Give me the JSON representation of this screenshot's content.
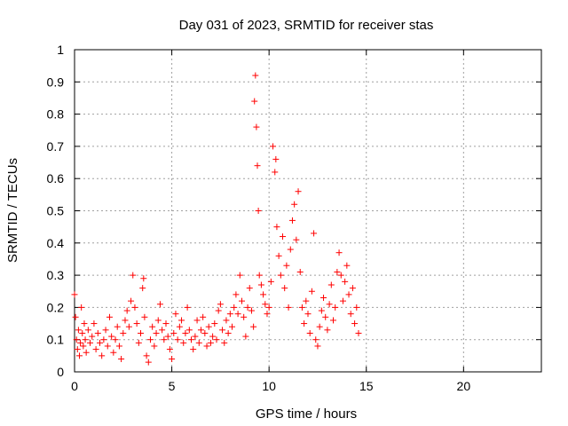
{
  "chart_data": {
    "type": "scatter",
    "title": "Day 031 of 2023, SRMTID for receiver stas",
    "xlabel": "GPS time / hours",
    "ylabel": "SRMTID / TECUs",
    "xlim": [
      0,
      24
    ],
    "ylim": [
      0,
      1
    ],
    "xticks": [
      0,
      5,
      10,
      15,
      20
    ],
    "yticks": [
      0,
      0.1,
      0.2,
      0.3,
      0.4,
      0.5,
      0.6,
      0.7,
      0.8,
      0.9,
      1
    ],
    "ytick_labels": [
      "0",
      "0.1",
      "0.2",
      "0.3",
      "0.4",
      "0.5",
      "0.6",
      "0.7",
      "0.8",
      "0.9",
      "1"
    ],
    "grid": true,
    "marker": "plus",
    "color": "#ff0000",
    "series": [
      {
        "name": "stas",
        "points": [
          [
            0.0,
            0.24
          ],
          [
            0.05,
            0.17
          ],
          [
            0.1,
            0.1
          ],
          [
            0.15,
            0.07
          ],
          [
            0.2,
            0.13
          ],
          [
            0.25,
            0.05
          ],
          [
            0.3,
            0.09
          ],
          [
            0.35,
            0.2
          ],
          [
            0.4,
            0.12
          ],
          [
            0.45,
            0.08
          ],
          [
            0.5,
            0.15
          ],
          [
            0.55,
            0.1
          ],
          [
            0.6,
            0.06
          ],
          [
            0.7,
            0.13
          ],
          [
            0.8,
            0.09
          ],
          [
            0.9,
            0.11
          ],
          [
            1.0,
            0.15
          ],
          [
            1.1,
            0.07
          ],
          [
            1.2,
            0.12
          ],
          [
            1.3,
            0.09
          ],
          [
            1.4,
            0.05
          ],
          [
            1.5,
            0.1
          ],
          [
            1.6,
            0.13
          ],
          [
            1.7,
            0.08
          ],
          [
            1.8,
            0.17
          ],
          [
            1.9,
            0.11
          ],
          [
            2.0,
            0.06
          ],
          [
            2.1,
            0.1
          ],
          [
            2.2,
            0.14
          ],
          [
            2.3,
            0.08
          ],
          [
            2.4,
            0.04
          ],
          [
            2.5,
            0.12
          ],
          [
            2.6,
            0.16
          ],
          [
            2.7,
            0.19
          ],
          [
            2.8,
            0.14
          ],
          [
            2.9,
            0.22
          ],
          [
            3.0,
            0.3
          ],
          [
            3.1,
            0.2
          ],
          [
            3.2,
            0.15
          ],
          [
            3.3,
            0.09
          ],
          [
            3.4,
            0.12
          ],
          [
            3.5,
            0.26
          ],
          [
            3.55,
            0.29
          ],
          [
            3.6,
            0.17
          ],
          [
            3.7,
            0.05
          ],
          [
            3.8,
            0.03
          ],
          [
            3.9,
            0.1
          ],
          [
            4.0,
            0.14
          ],
          [
            4.1,
            0.08
          ],
          [
            4.2,
            0.12
          ],
          [
            4.3,
            0.16
          ],
          [
            4.4,
            0.21
          ],
          [
            4.5,
            0.13
          ],
          [
            4.6,
            0.1
          ],
          [
            4.7,
            0.15
          ],
          [
            4.8,
            0.11
          ],
          [
            4.9,
            0.07
          ],
          [
            5.0,
            0.04
          ],
          [
            5.1,
            0.12
          ],
          [
            5.2,
            0.18
          ],
          [
            5.3,
            0.1
          ],
          [
            5.4,
            0.14
          ],
          [
            5.5,
            0.16
          ],
          [
            5.6,
            0.09
          ],
          [
            5.7,
            0.12
          ],
          [
            5.8,
            0.2
          ],
          [
            5.9,
            0.13
          ],
          [
            6.0,
            0.1
          ],
          [
            6.1,
            0.07
          ],
          [
            6.2,
            0.11
          ],
          [
            6.3,
            0.16
          ],
          [
            6.4,
            0.09
          ],
          [
            6.5,
            0.13
          ],
          [
            6.6,
            0.17
          ],
          [
            6.7,
            0.12
          ],
          [
            6.8,
            0.08
          ],
          [
            6.9,
            0.14
          ],
          [
            7.0,
            0.09
          ],
          [
            7.1,
            0.11
          ],
          [
            7.2,
            0.15
          ],
          [
            7.3,
            0.1
          ],
          [
            7.4,
            0.19
          ],
          [
            7.5,
            0.21
          ],
          [
            7.6,
            0.13
          ],
          [
            7.7,
            0.09
          ],
          [
            7.8,
            0.16
          ],
          [
            7.9,
            0.12
          ],
          [
            8.0,
            0.18
          ],
          [
            8.1,
            0.14
          ],
          [
            8.2,
            0.2
          ],
          [
            8.3,
            0.24
          ],
          [
            8.4,
            0.18
          ],
          [
            8.5,
            0.3
          ],
          [
            8.6,
            0.22
          ],
          [
            8.7,
            0.17
          ],
          [
            8.8,
            0.11
          ],
          [
            8.9,
            0.2
          ],
          [
            9.0,
            0.26
          ],
          [
            9.1,
            0.19
          ],
          [
            9.2,
            0.14
          ],
          [
            9.25,
            0.84
          ],
          [
            9.3,
            0.92
          ],
          [
            9.35,
            0.76
          ],
          [
            9.4,
            0.64
          ],
          [
            9.45,
            0.5
          ],
          [
            9.5,
            0.3
          ],
          [
            9.6,
            0.27
          ],
          [
            9.7,
            0.24
          ],
          [
            9.8,
            0.21
          ],
          [
            9.9,
            0.18
          ],
          [
            10.0,
            0.2
          ],
          [
            10.1,
            0.28
          ],
          [
            10.2,
            0.7
          ],
          [
            10.3,
            0.62
          ],
          [
            10.35,
            0.66
          ],
          [
            10.4,
            0.45
          ],
          [
            10.5,
            0.36
          ],
          [
            10.6,
            0.3
          ],
          [
            10.7,
            0.42
          ],
          [
            10.8,
            0.26
          ],
          [
            10.9,
            0.33
          ],
          [
            11.0,
            0.2
          ],
          [
            11.1,
            0.38
          ],
          [
            11.2,
            0.47
          ],
          [
            11.3,
            0.52
          ],
          [
            11.4,
            0.41
          ],
          [
            11.5,
            0.56
          ],
          [
            11.6,
            0.31
          ],
          [
            11.7,
            0.2
          ],
          [
            11.8,
            0.15
          ],
          [
            11.9,
            0.22
          ],
          [
            12.0,
            0.18
          ],
          [
            12.1,
            0.12
          ],
          [
            12.2,
            0.25
          ],
          [
            12.3,
            0.43
          ],
          [
            12.4,
            0.1
          ],
          [
            12.5,
            0.08
          ],
          [
            12.6,
            0.14
          ],
          [
            12.7,
            0.19
          ],
          [
            12.8,
            0.23
          ],
          [
            12.9,
            0.17
          ],
          [
            13.0,
            0.13
          ],
          [
            13.1,
            0.21
          ],
          [
            13.2,
            0.27
          ],
          [
            13.3,
            0.16
          ],
          [
            13.4,
            0.2
          ],
          [
            13.5,
            0.31
          ],
          [
            13.6,
            0.37
          ],
          [
            13.7,
            0.3
          ],
          [
            13.8,
            0.22
          ],
          [
            13.9,
            0.28
          ],
          [
            14.0,
            0.33
          ],
          [
            14.1,
            0.24
          ],
          [
            14.2,
            0.18
          ],
          [
            14.3,
            0.26
          ],
          [
            14.4,
            0.15
          ],
          [
            14.5,
            0.2
          ],
          [
            14.6,
            0.12
          ]
        ]
      }
    ]
  }
}
